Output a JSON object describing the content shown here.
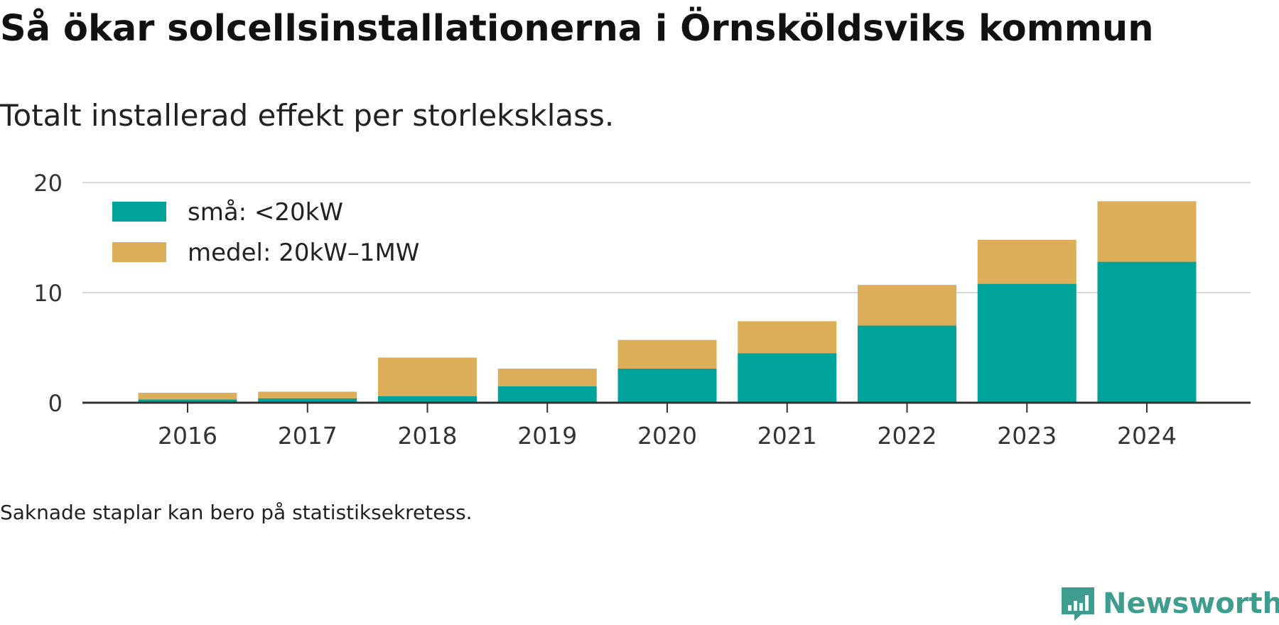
{
  "title": "Så ökar solcellsinstallationerna i Örnsköldsviks kommun",
  "subtitle": "Totalt installerad effekt per storleksklass.",
  "footnote": "Saknade staplar kan bero på statistiksekretess.",
  "brand": {
    "name": "Newsworthy",
    "color": "#3f9d8f"
  },
  "chart_data": {
    "type": "bar",
    "stacked": true,
    "categories": [
      "2016",
      "2017",
      "2018",
      "2019",
      "2020",
      "2021",
      "2022",
      "2023",
      "2024"
    ],
    "series": [
      {
        "name": "små: <20kW",
        "color": "#00a39a",
        "values": [
          0.3,
          0.4,
          0.6,
          1.5,
          3.1,
          4.5,
          7.0,
          10.8,
          12.8
        ]
      },
      {
        "name": "medel: 20kW–1MW",
        "color": "#dcae5a",
        "values": [
          0.6,
          0.6,
          3.5,
          1.6,
          2.6,
          2.9,
          3.7,
          4.0,
          5.5
        ]
      }
    ],
    "yticks": [
      0,
      10,
      20
    ],
    "ylim": [
      0,
      20
    ],
    "grid": true,
    "legend_position": "top-left"
  }
}
